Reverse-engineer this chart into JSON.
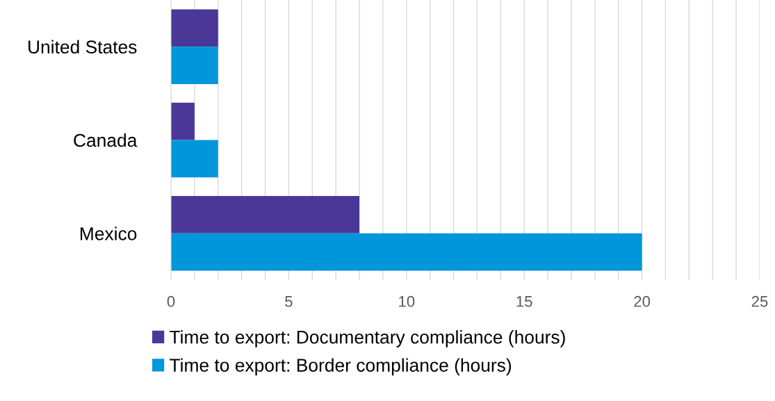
{
  "chart_data": {
    "type": "bar",
    "orientation": "horizontal",
    "categories": [
      "United States",
      "Canada",
      "Mexico"
    ],
    "series": [
      {
        "name": "Time to export: Documentary compliance (hours)",
        "color": "#4b3797",
        "values": [
          2,
          1,
          8
        ]
      },
      {
        "name": "Time to export: Border compliance (hours)",
        "color": "#0096db",
        "values": [
          2,
          2,
          20
        ]
      }
    ],
    "xlim": [
      0,
      25
    ],
    "xticks": [
      0,
      {
        "value": 1,
        "label": null
      },
      {
        "value": 2,
        "label": null
      },
      {
        "value": 3,
        "label": null
      },
      {
        "value": 4,
        "label": null
      },
      5,
      {
        "value": 6,
        "label": null
      },
      {
        "value": 7,
        "label": null
      },
      {
        "value": 8,
        "label": null
      },
      {
        "value": 9,
        "label": null
      },
      10,
      {
        "value": 11,
        "label": null
      },
      {
        "value": 12,
        "label": null
      },
      {
        "value": 13,
        "label": null
      },
      {
        "value": 14,
        "label": null
      },
      15,
      {
        "value": 16,
        "label": null
      },
      {
        "value": 17,
        "label": null
      },
      {
        "value": 18,
        "label": null
      },
      {
        "value": 19,
        "label": null
      },
      20,
      {
        "value": 21,
        "label": null
      },
      {
        "value": 22,
        "label": null
      },
      {
        "value": 23,
        "label": null
      },
      {
        "value": 24,
        "label": null
      },
      25
    ],
    "grid": "x",
    "legend": "bottom"
  }
}
